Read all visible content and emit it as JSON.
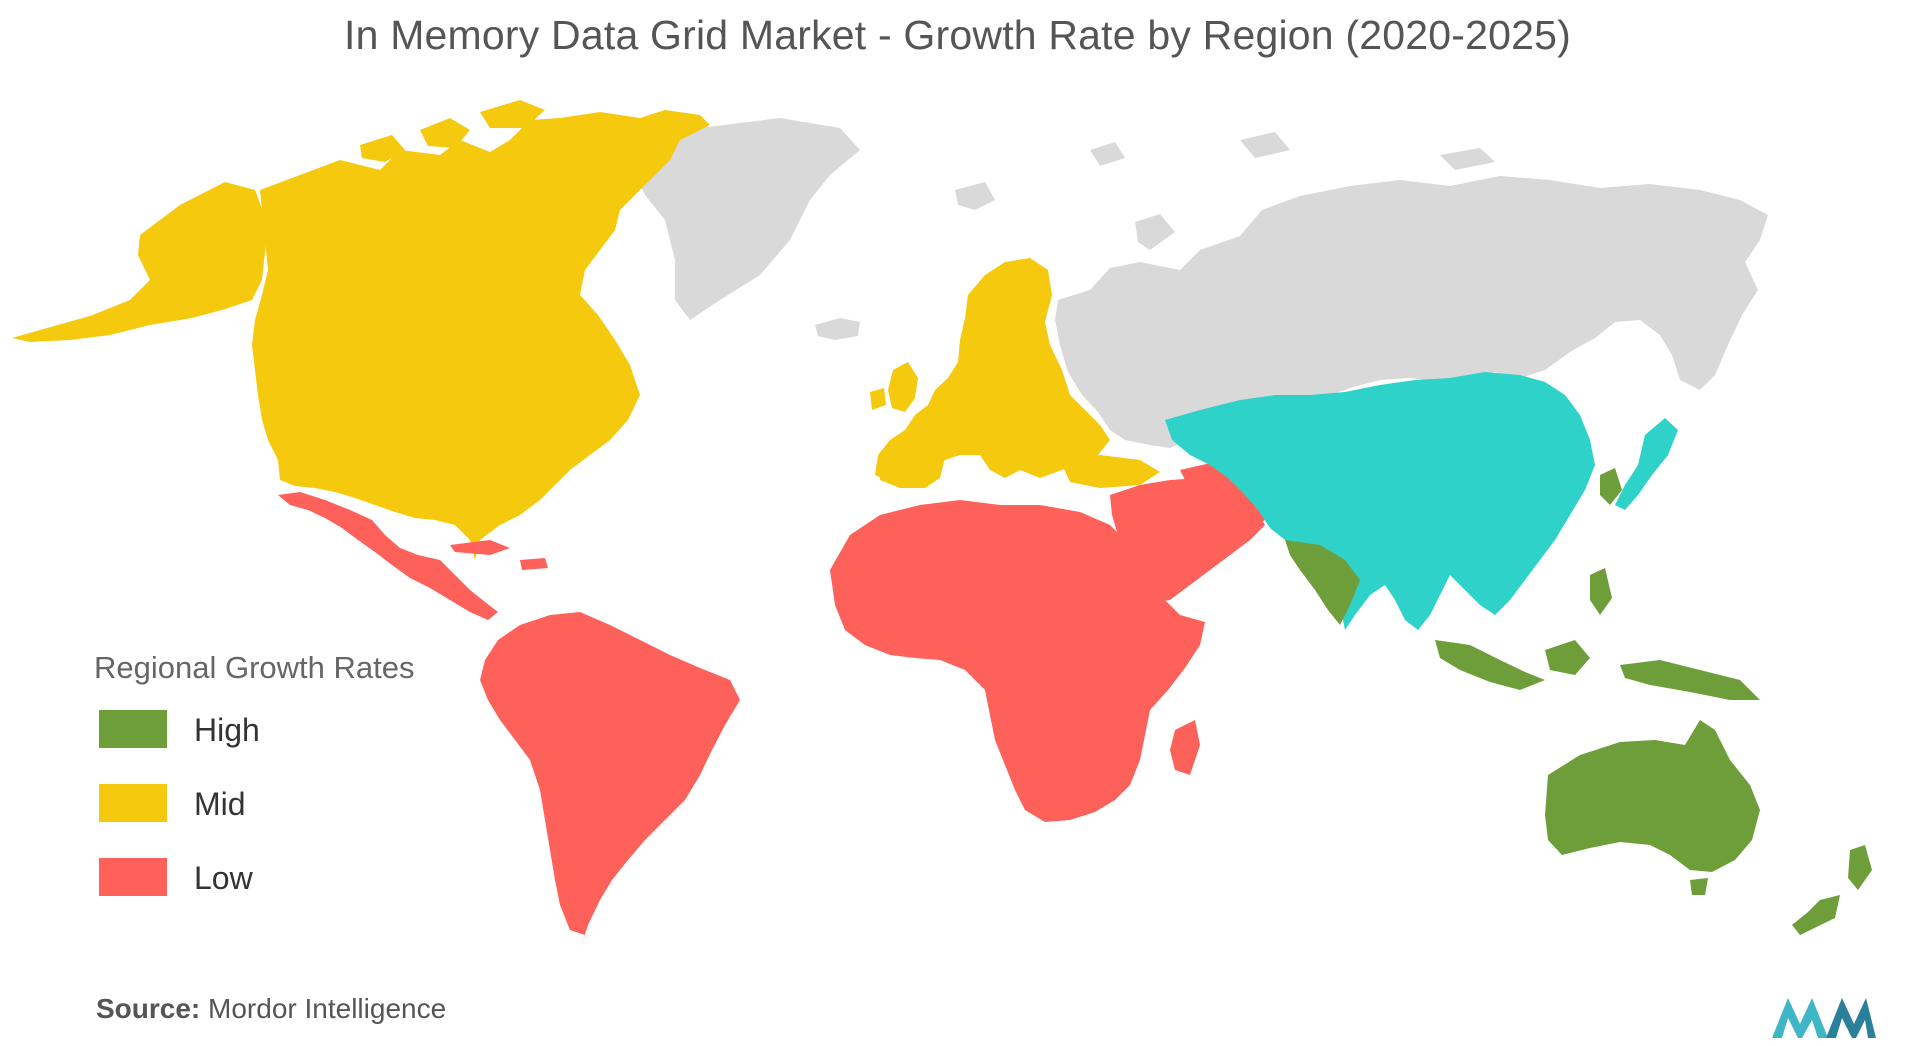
{
  "title": "In Memory Data Grid Market - Growth Rate by Region (2020-2025)",
  "legend": {
    "title": "Regional Growth Rates",
    "items": [
      {
        "label": "High",
        "color": "#6d9e3a"
      },
      {
        "label": "Mid",
        "color": "#f5c90d"
      },
      {
        "label": "Low",
        "color": "#fd6159"
      }
    ]
  },
  "colors": {
    "high": "#6d9e3a",
    "mid": "#f5c90d",
    "low": "#fd6159",
    "no_data": "#d9d9d9",
    "japan_highlight": "#2fd2c9"
  },
  "regions": [
    {
      "name": "North America",
      "level": "mid"
    },
    {
      "name": "Europe",
      "level": "mid"
    },
    {
      "name": "Asia-Pacific",
      "level": "high"
    },
    {
      "name": "Latin America",
      "level": "low"
    },
    {
      "name": "Middle East and Africa",
      "level": "low"
    }
  ],
  "source": {
    "label": "Source:",
    "text": "Mordor Intelligence"
  },
  "logo_icon": "mordor-intelligence-logo"
}
